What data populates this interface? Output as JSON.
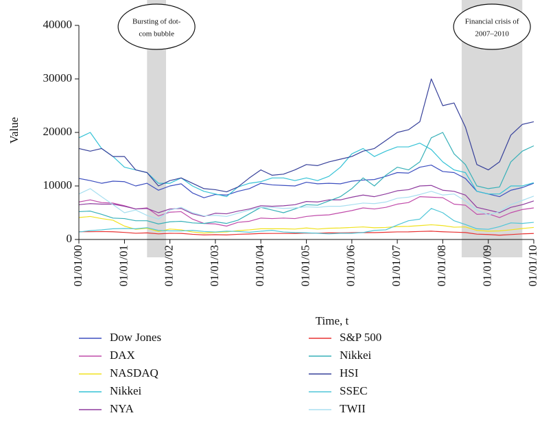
{
  "chart_data": {
    "type": "line",
    "xlabel": "Time, t",
    "ylabel": "Value",
    "xlim": [
      "01/01/00",
      "01/01/10"
    ],
    "xticks": [
      "01/01/00",
      "01/01/01",
      "01/01/02",
      "01/01/03",
      "01/01/04",
      "01/01/05",
      "01/01/06",
      "01/01/07",
      "01/01/08",
      "01/01/09",
      "01/01/10"
    ],
    "ylim": [
      0,
      40000
    ],
    "yticks": [
      0,
      10000,
      20000,
      30000,
      40000
    ],
    "legend": "bottom",
    "shaded_periods": [
      {
        "label_lines": [
          "Bursting of dot-",
          "com bubble"
        ],
        "start": "01/07/01",
        "end": "01/12/01"
      },
      {
        "label_lines": [
          "Financial crisis of",
          "2007–2010"
        ],
        "start": "01/06/08",
        "end": "01/10/09"
      }
    ],
    "x": [
      "01/01/00",
      "01/04/00",
      "01/07/00",
      "01/10/00",
      "01/01/01",
      "01/04/01",
      "01/07/01",
      "01/10/01",
      "01/01/02",
      "01/04/02",
      "01/07/02",
      "01/10/02",
      "01/01/03",
      "01/04/03",
      "01/07/03",
      "01/10/03",
      "01/01/04",
      "01/04/04",
      "01/07/04",
      "01/10/04",
      "01/01/05",
      "01/04/05",
      "01/07/05",
      "01/10/05",
      "01/01/06",
      "01/04/06",
      "01/07/06",
      "01/10/06",
      "01/01/07",
      "01/04/07",
      "01/07/07",
      "01/10/07",
      "01/01/08",
      "01/04/08",
      "01/07/08",
      "01/10/08",
      "01/01/09",
      "01/04/09",
      "01/07/09",
      "01/10/09",
      "01/01/10"
    ],
    "series": [
      {
        "name": "Dow Jones",
        "color": "#3b4dbf",
        "values": [
          11400,
          11000,
          10500,
          10900,
          10800,
          10000,
          10500,
          9200,
          10000,
          10400,
          8700,
          7800,
          8400,
          8300,
          9000,
          9500,
          10500,
          10200,
          10100,
          10000,
          10700,
          10400,
          10500,
          10400,
          10900,
          11100,
          11200,
          11800,
          12500,
          12400,
          13500,
          13900,
          12700,
          12500,
          11400,
          9000,
          8500,
          8000,
          9200,
          9700,
          10500
        ]
      },
      {
        "name": "DAX",
        "color": "#c04aa9",
        "values": [
          7000,
          7400,
          6900,
          6800,
          6300,
          5700,
          5900,
          4400,
          5100,
          5200,
          3800,
          3000,
          2900,
          2500,
          3200,
          3400,
          4000,
          3900,
          4000,
          3900,
          4300,
          4500,
          4600,
          5000,
          5400,
          5900,
          5700,
          6000,
          6600,
          6900,
          8000,
          7900,
          7800,
          6600,
          6400,
          4700,
          4800,
          4100,
          5000,
          5600,
          5900
        ]
      },
      {
        "name": "NASDAQ",
        "color": "#f0e21e",
        "values": [
          4100,
          4300,
          3900,
          3600,
          2500,
          1900,
          2100,
          1500,
          1950,
          1800,
          1400,
          1200,
          1350,
          1400,
          1650,
          1800,
          2000,
          2000,
          2000,
          1950,
          2150,
          1950,
          2100,
          2150,
          2250,
          2350,
          2200,
          2250,
          2400,
          2450,
          2600,
          2750,
          2600,
          2300,
          2350,
          1700,
          1550,
          1600,
          1800,
          2050,
          2250
        ]
      },
      {
        "name": "Nikkei",
        "color": "#34c2d6",
        "values": [
          19000,
          20000,
          17000,
          15500,
          13500,
          13000,
          12500,
          10500,
          10500,
          11500,
          10000,
          9000,
          8500,
          8000,
          9800,
          10500,
          10800,
          11500,
          11500,
          11000,
          11500,
          11000,
          11800,
          13500,
          16000,
          17000,
          15500,
          16500,
          17300,
          17300,
          18000,
          16800,
          14500,
          13000,
          12500,
          9000,
          8500,
          8500,
          10000,
          10000,
          10600
        ]
      },
      {
        "name": "NYA",
        "color": "#8e3a9e",
        "values": [
          6500,
          6700,
          6600,
          6600,
          6200,
          5700,
          5800,
          5000,
          5700,
          5800,
          4800,
          4300,
          4900,
          4800,
          5300,
          5700,
          6300,
          6200,
          6300,
          6500,
          7100,
          7000,
          7400,
          7400,
          7900,
          8300,
          8000,
          8500,
          9100,
          9300,
          10000,
          10100,
          9200,
          9000,
          8300,
          6000,
          5500,
          5000,
          6000,
          6500,
          7200
        ]
      },
      {
        "name": "S&P 500",
        "color": "#e83030",
        "values": [
          1450,
          1450,
          1480,
          1440,
          1320,
          1160,
          1230,
          1050,
          1150,
          1140,
          970,
          850,
          900,
          850,
          970,
          1030,
          1120,
          1130,
          1130,
          1120,
          1200,
          1180,
          1230,
          1230,
          1270,
          1300,
          1280,
          1350,
          1420,
          1430,
          1500,
          1550,
          1440,
          1370,
          1300,
          1000,
          930,
          800,
          920,
          1050,
          1120
        ]
      },
      {
        "name": "Nikkei",
        "color": "#36b0b8",
        "values": [
          5200,
          5300,
          4700,
          4000,
          3900,
          3500,
          3500,
          2900,
          3300,
          3400,
          3100,
          3000,
          3300,
          3000,
          3600,
          4800,
          6000,
          5500,
          5000,
          5700,
          6500,
          6400,
          7200,
          8000,
          9500,
          11500,
          10000,
          12000,
          13500,
          13000,
          14500,
          19000,
          20000,
          16000,
          14000,
          10000,
          9500,
          9800,
          14500,
          16500,
          17500
        ]
      },
      {
        "name": "HSI",
        "color": "#36409a",
        "values": [
          17000,
          16500,
          17000,
          15500,
          15500,
          13000,
          12500,
          10000,
          11000,
          11500,
          10500,
          9500,
          9300,
          8900,
          9800,
          11500,
          13000,
          12000,
          12200,
          13000,
          14000,
          13800,
          14500,
          15000,
          15500,
          16500,
          17000,
          18500,
          20000,
          20500,
          22000,
          30000,
          25000,
          25500,
          21000,
          14000,
          13000,
          14500,
          19500,
          21500,
          22000
        ]
      },
      {
        "name": "SSEC",
        "color": "#4fc6d8",
        "values": [
          1400,
          1650,
          1800,
          2000,
          2050,
          2000,
          2200,
          1700,
          1600,
          1600,
          1700,
          1500,
          1400,
          1550,
          1500,
          1350,
          1550,
          1700,
          1400,
          1300,
          1250,
          1150,
          1050,
          1150,
          1150,
          1300,
          1700,
          1800,
          2700,
          3500,
          3800,
          5800,
          5000,
          3500,
          2800,
          2000,
          1900,
          2400,
          3100,
          3000,
          3200
        ]
      },
      {
        "name": "TWII",
        "color": "#a8dff0",
        "values": [
          8500,
          9500,
          8000,
          6500,
          5000,
          5500,
          4500,
          3800,
          5500,
          6000,
          5000,
          4400,
          4500,
          4300,
          4900,
          5500,
          6000,
          6000,
          5800,
          5900,
          6100,
          6000,
          6200,
          6200,
          6500,
          6800,
          6700,
          7000,
          7700,
          7900,
          8400,
          9000,
          8300,
          8500,
          7200,
          5500,
          4600,
          5200,
          6500,
          7300,
          8100
        ]
      }
    ]
  }
}
